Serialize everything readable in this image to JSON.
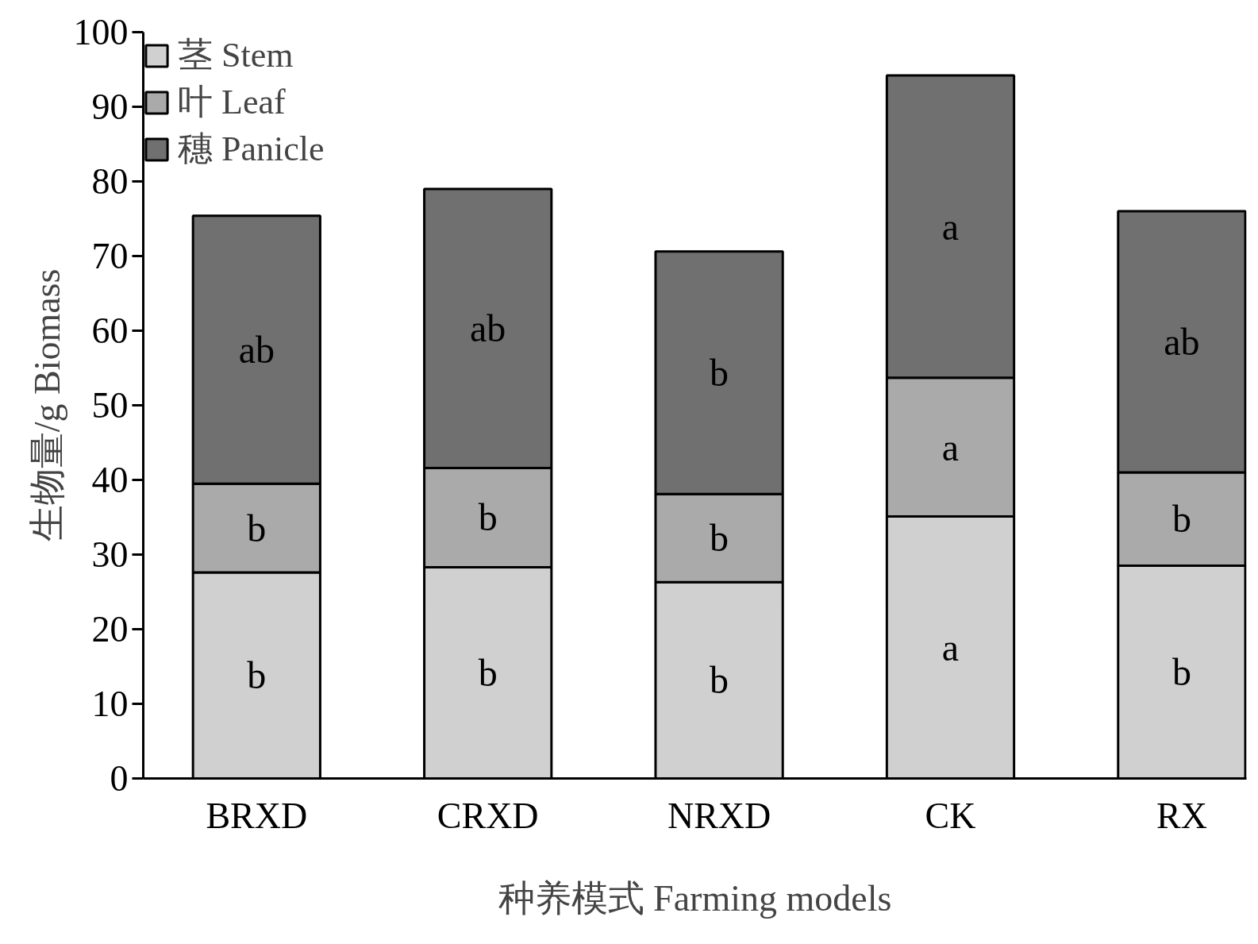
{
  "chart_data": {
    "type": "bar",
    "stacked": true,
    "xlabel": "种养模式 Farming models",
    "ylabel": "生物量/g Biomass",
    "categories": [
      "BRXD",
      "CRXD",
      "NRXD",
      "CK",
      "RX"
    ],
    "series": [
      {
        "name": "茎 Stem",
        "color": "#d0d0d0",
        "values": [
          27.6,
          28.3,
          26.3,
          35.1,
          28.5
        ],
        "value_labels": [
          "b",
          "b",
          "b",
          "a",
          "b"
        ]
      },
      {
        "name": "叶 Leaf",
        "color": "#aaaaaa",
        "values": [
          11.9,
          13.3,
          11.8,
          18.6,
          12.5
        ],
        "value_labels": [
          "b",
          "b",
          "b",
          "a",
          "b"
        ]
      },
      {
        "name": "穗 Panicle",
        "color": "#707070",
        "values": [
          35.9,
          37.4,
          32.5,
          40.5,
          35.0
        ],
        "value_labels": [
          "ab",
          "ab",
          "b",
          "a",
          "ab"
        ]
      }
    ],
    "ylim": [
      0,
      100
    ],
    "yticks": [
      0,
      10,
      20,
      30,
      40,
      50,
      60,
      70,
      80,
      90,
      100
    ],
    "legend": "top left",
    "grid": false
  }
}
